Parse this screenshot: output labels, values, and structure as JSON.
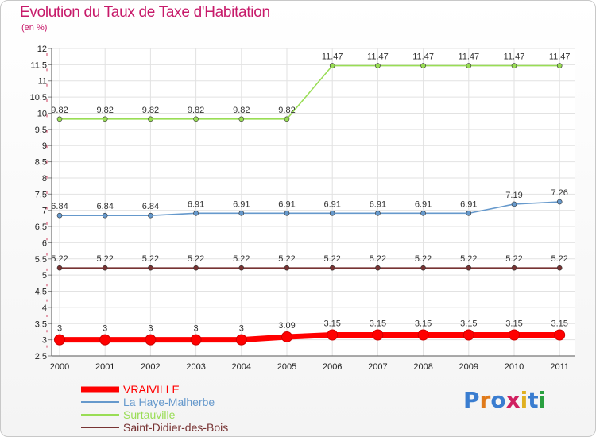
{
  "title": "Evolution du Taux de Taxe d'Habitation",
  "subtitle": "(en %)",
  "logo": "Proxiti",
  "chart_data": {
    "type": "line",
    "title": "Evolution du Taux de Taxe d'Habitation",
    "ylabel": "(en %)",
    "xlabel": "",
    "ylim": [
      2.5,
      12
    ],
    "yticks": [
      "2.5",
      "3",
      "3.5",
      "4",
      "4.5",
      "5",
      "5.5",
      "6",
      "6.5",
      "7",
      "7.5",
      "8",
      "8.5",
      "9",
      "9.5",
      "10",
      "10.5",
      "11",
      "11.5",
      "12"
    ],
    "categories": [
      "2000",
      "2001",
      "2002",
      "2003",
      "2004",
      "2005",
      "2006",
      "2007",
      "2008",
      "2009",
      "2010",
      "2011"
    ],
    "grid": true,
    "legend": "bottom-left",
    "series": [
      {
        "name": "VRAIVILLE",
        "color": "#ff0000",
        "values": [
          3,
          3,
          3,
          3,
          3,
          3.09,
          3.15,
          3.15,
          3.15,
          3.15,
          3.15,
          3.15
        ],
        "labels": [
          "3",
          "3",
          "3",
          "3",
          "3",
          "3.09",
          "3.15",
          "3.15",
          "3.15",
          "3.15",
          "3.15",
          "3.15"
        ]
      },
      {
        "name": "La Haye-Malherbe",
        "color": "#6699cc",
        "values": [
          6.84,
          6.84,
          6.84,
          6.91,
          6.91,
          6.91,
          6.91,
          6.91,
          6.91,
          6.91,
          7.19,
          7.26
        ],
        "labels": [
          "6.84",
          "6.84",
          "6.84",
          "6.91",
          "6.91",
          "6.91",
          "6.91",
          "6.91",
          "6.91",
          "6.91",
          "7.19",
          "7.26"
        ]
      },
      {
        "name": "Surtauville",
        "color": "#99dd55",
        "values": [
          9.82,
          9.82,
          9.82,
          9.82,
          9.82,
          9.82,
          11.47,
          11.47,
          11.47,
          11.47,
          11.47,
          11.47
        ],
        "labels": [
          "9.82",
          "9.82",
          "9.82",
          "9.82",
          "9.82",
          "9.82",
          "11.47",
          "11.47",
          "11.47",
          "11.47",
          "11.47",
          "11.47"
        ]
      },
      {
        "name": "Saint-Didier-des-Bois",
        "color": "#773333",
        "values": [
          5.22,
          5.22,
          5.22,
          5.22,
          5.22,
          5.22,
          5.22,
          5.22,
          5.22,
          5.22,
          5.22,
          5.22
        ],
        "labels": [
          "5.22",
          "5.22",
          "5.22",
          "5.22",
          "5.22",
          "5.22",
          "5.22",
          "5.22",
          "5.22",
          "5.22",
          "5.22",
          "5.22"
        ]
      }
    ]
  }
}
